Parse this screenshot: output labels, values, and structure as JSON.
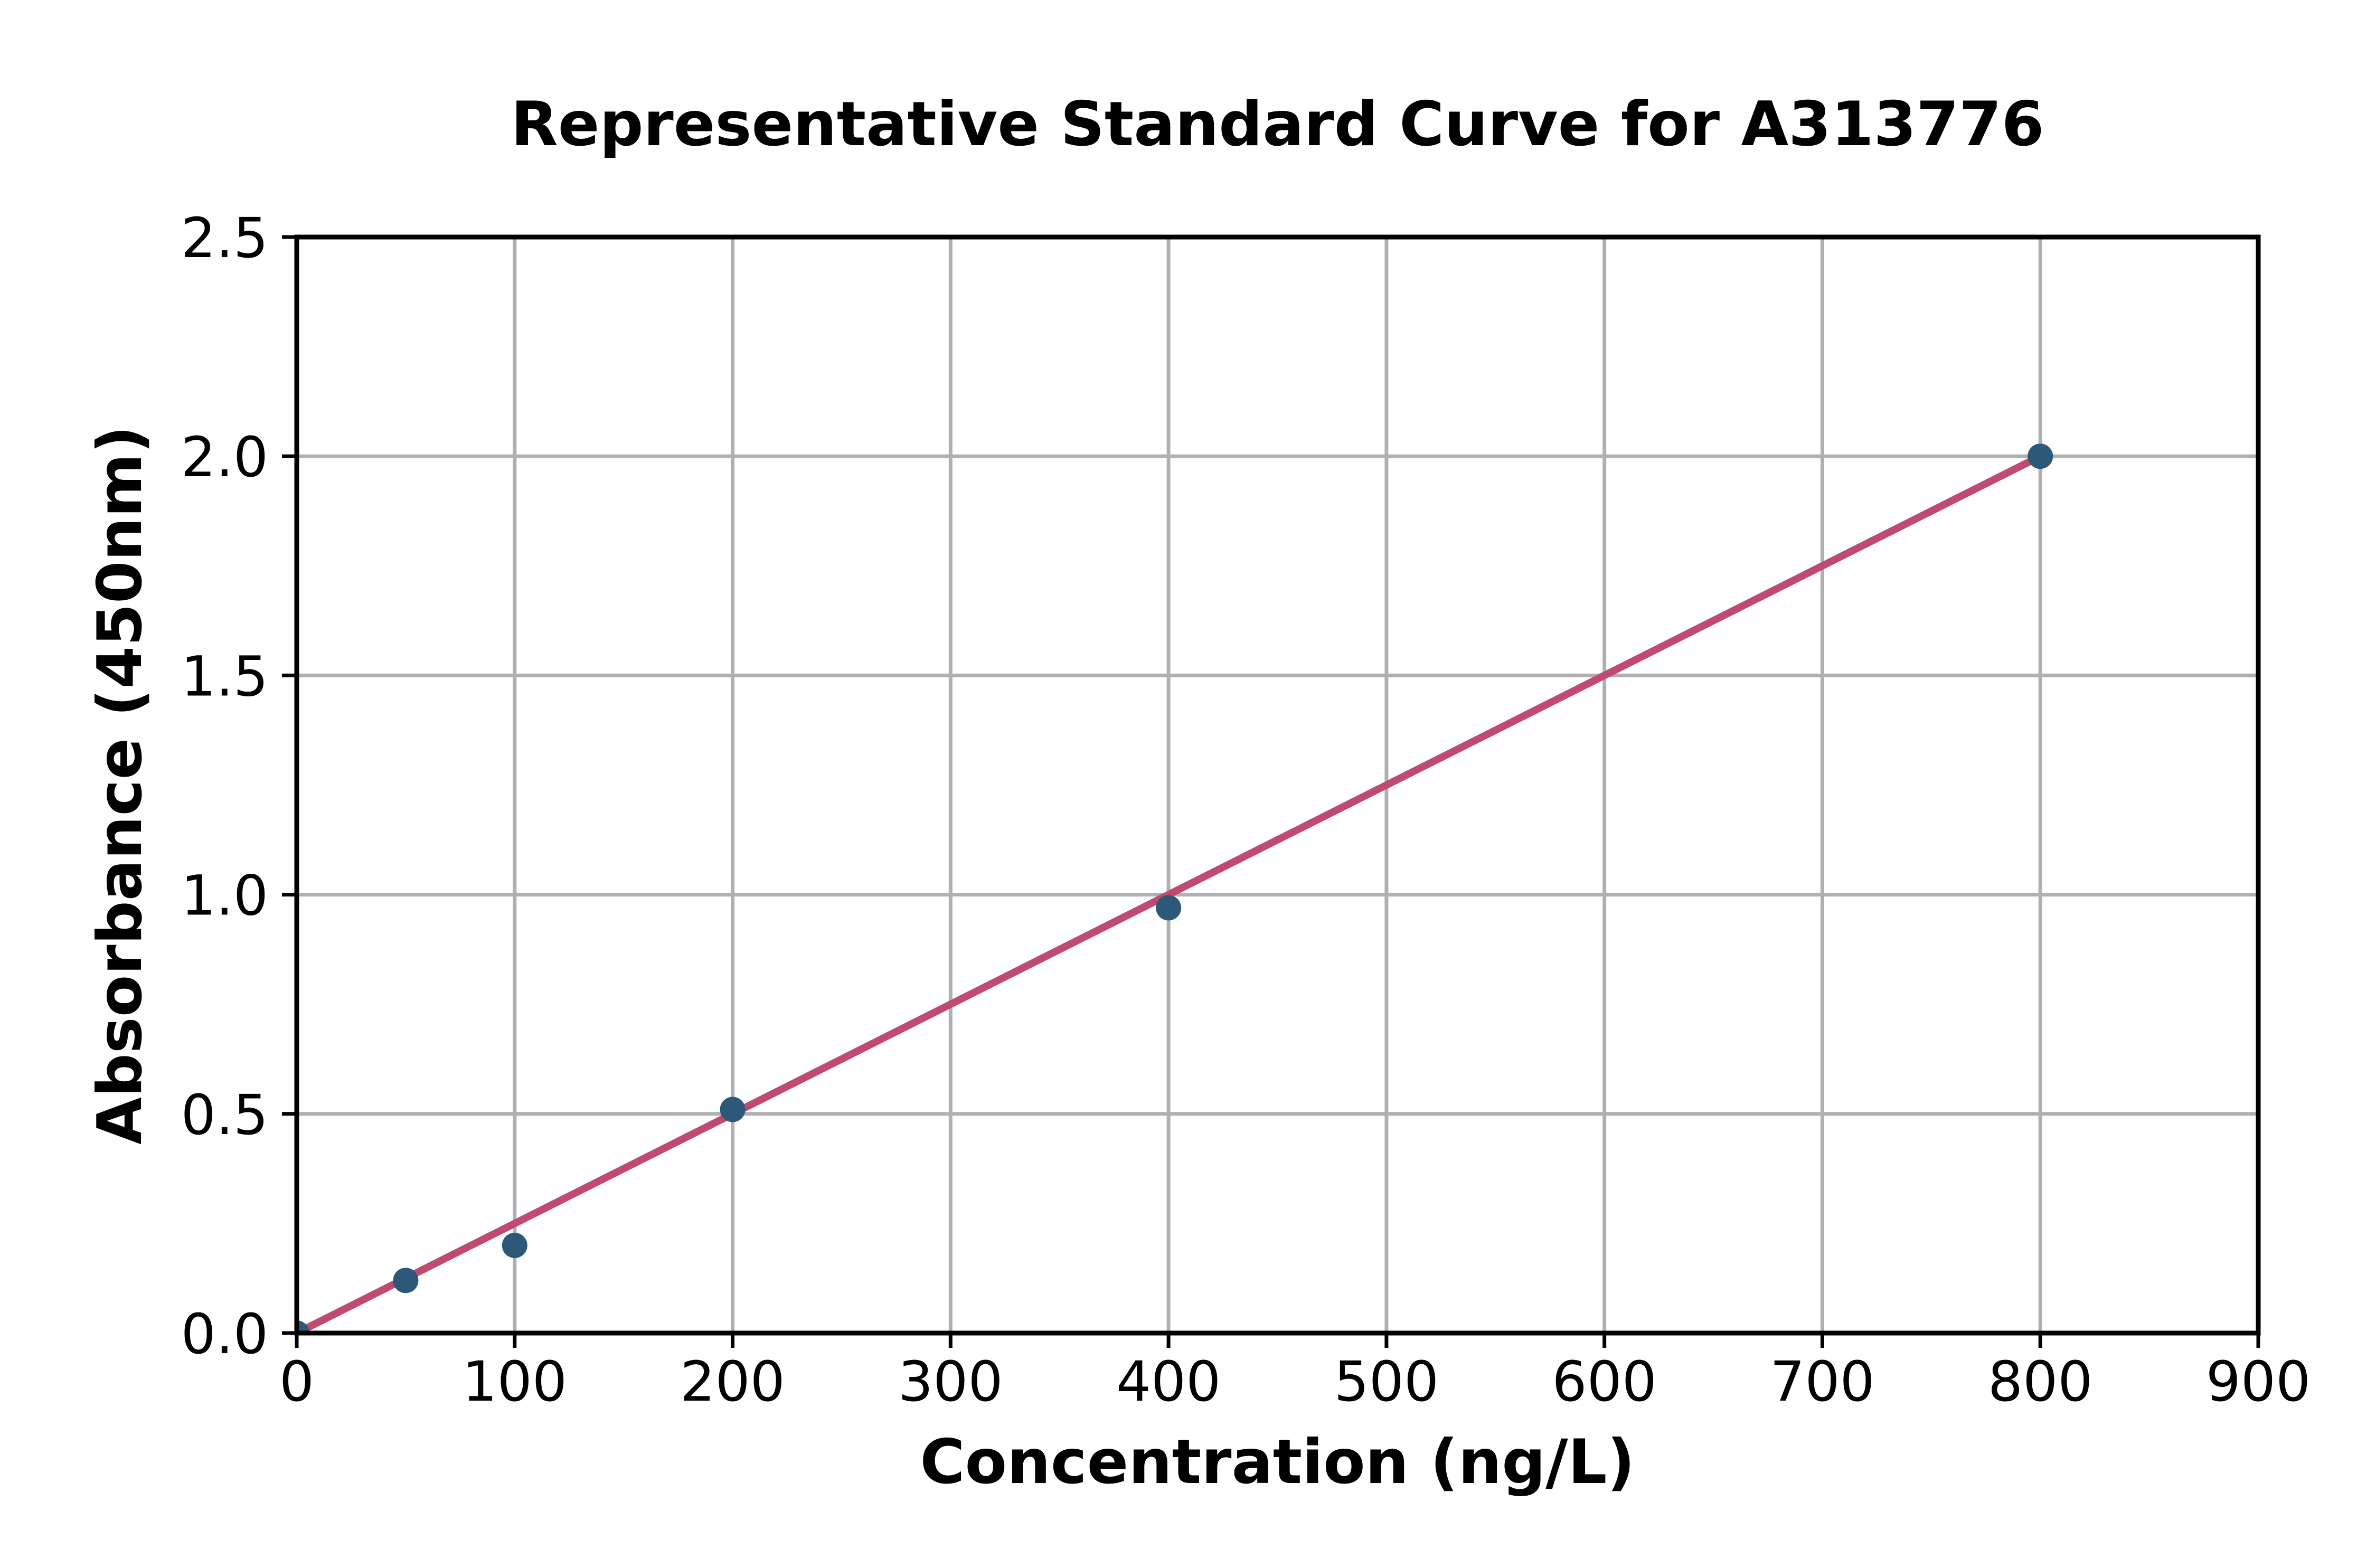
{
  "chart_data": {
    "type": "scatter",
    "title": "Representative Standard Curve for A313776",
    "xlabel": "Concentration (ng/L)",
    "ylabel": "Absorbance (450nm)",
    "xlim": [
      0,
      900
    ],
    "ylim": [
      0,
      2.5
    ],
    "grid": true,
    "legend": "none",
    "xticks": [
      {
        "value": 0,
        "label": "0"
      },
      {
        "value": 100,
        "label": "100"
      },
      {
        "value": 200,
        "label": "200"
      },
      {
        "value": 300,
        "label": "300"
      },
      {
        "value": 400,
        "label": "400"
      },
      {
        "value": 500,
        "label": "500"
      },
      {
        "value": 600,
        "label": "600"
      },
      {
        "value": 700,
        "label": "700"
      },
      {
        "value": 800,
        "label": "800"
      },
      {
        "value": 900,
        "label": "900"
      }
    ],
    "yticks": [
      {
        "value": 0.0,
        "label": "0.0"
      },
      {
        "value": 0.5,
        "label": "0.5"
      },
      {
        "value": 1.0,
        "label": "1.0"
      },
      {
        "value": 1.5,
        "label": "1.5"
      },
      {
        "value": 2.0,
        "label": "2.0"
      },
      {
        "value": 2.5,
        "label": "2.5"
      }
    ],
    "series": [
      {
        "name": "standard-points",
        "type": "scatter",
        "points": [
          {
            "x": 0,
            "y": 0.0
          },
          {
            "x": 50,
            "y": 0.12
          },
          {
            "x": 100,
            "y": 0.2
          },
          {
            "x": 200,
            "y": 0.51
          },
          {
            "x": 400,
            "y": 0.97
          },
          {
            "x": 800,
            "y": 2.0
          }
        ]
      },
      {
        "name": "fit-line",
        "type": "line",
        "points": [
          {
            "x": 0,
            "y": 0.0
          },
          {
            "x": 800,
            "y": 2.0
          }
        ]
      }
    ],
    "colors": {
      "marker": "#2E5878",
      "line": "#C04A70",
      "grid": "#B0B0B0",
      "spine": "#000000",
      "text": "#000000",
      "background": "#FFFFFF"
    }
  }
}
